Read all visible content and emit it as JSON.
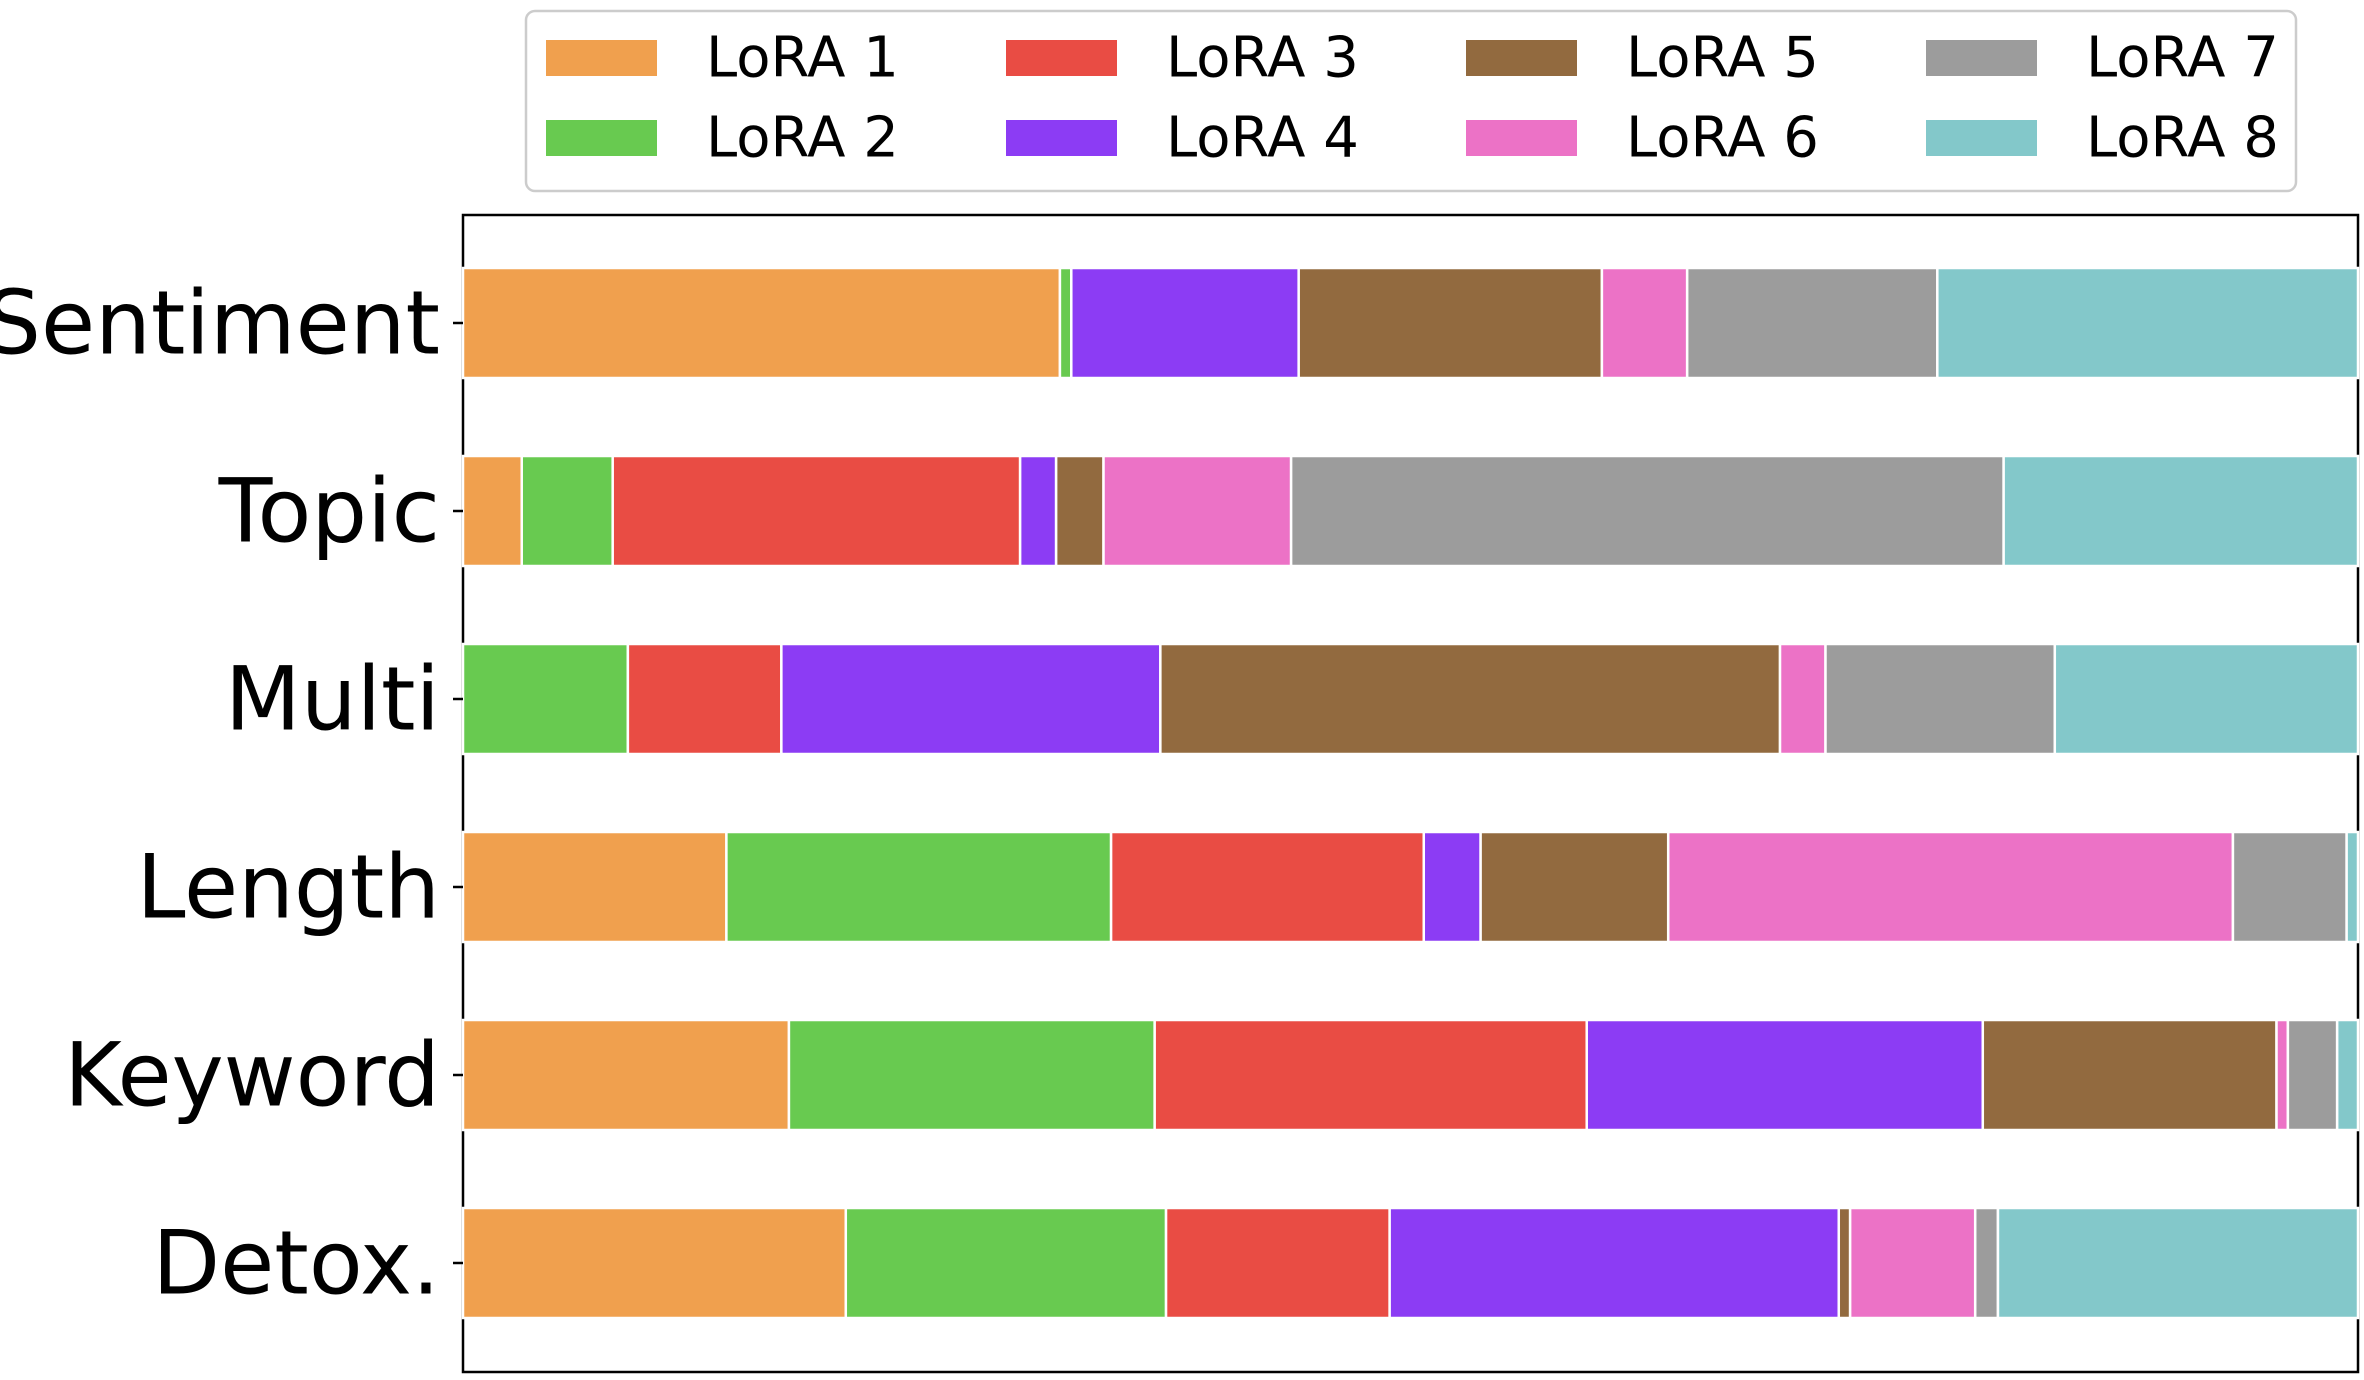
{
  "chart_data": {
    "type": "bar",
    "orientation": "horizontal",
    "stacked": true,
    "normalized": true,
    "title": "",
    "xlabel": "",
    "ylabel": "",
    "xlim": [
      0,
      1
    ],
    "grid": false,
    "legend_position": "top",
    "categories": [
      "Sentiment",
      "Topic",
      "Multi",
      "Length",
      "Keyword",
      "Detox."
    ],
    "series": [
      {
        "name": "LoRA 1",
        "color": "#f0a04e",
        "values": [
          0.315,
          0.031,
          0.0,
          0.139,
          0.172,
          0.202
        ]
      },
      {
        "name": "LoRA 2",
        "color": "#68ca50",
        "values": [
          0.006,
          0.048,
          0.087,
          0.203,
          0.193,
          0.169
        ]
      },
      {
        "name": "LoRA 3",
        "color": "#e94c44",
        "values": [
          0.0,
          0.215,
          0.081,
          0.165,
          0.228,
          0.118
        ]
      },
      {
        "name": "LoRA 4",
        "color": "#8c3cf4",
        "values": [
          0.12,
          0.019,
          0.2,
          0.03,
          0.209,
          0.237
        ]
      },
      {
        "name": "LoRA 5",
        "color": "#926a3f",
        "values": [
          0.16,
          0.025,
          0.327,
          0.099,
          0.155,
          0.006
        ]
      },
      {
        "name": "LoRA 6",
        "color": "#ec72c6",
        "values": [
          0.045,
          0.099,
          0.024,
          0.298,
          0.006,
          0.066
        ]
      },
      {
        "name": "LoRA 7",
        "color": "#9c9c9c",
        "values": [
          0.132,
          0.376,
          0.121,
          0.06,
          0.026,
          0.012
        ]
      },
      {
        "name": "LoRA 8",
        "color": "#83c8ca",
        "values": [
          0.222,
          0.187,
          0.16,
          0.006,
          0.011,
          0.19
        ]
      }
    ]
  }
}
